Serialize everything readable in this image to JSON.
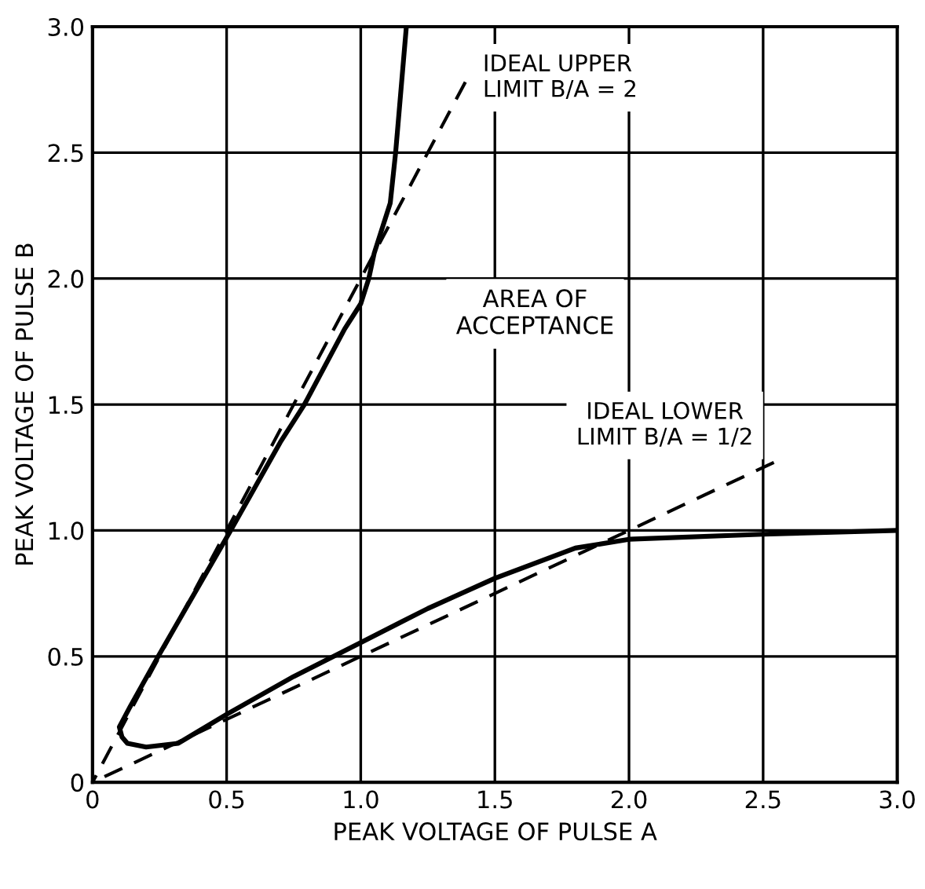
{
  "chart_data": {
    "type": "line",
    "xlabel": "PEAK VOLTAGE OF PULSE A",
    "ylabel": "PEAK VOLTAGE OF PULSE B",
    "xlim": [
      0,
      3
    ],
    "ylim": [
      0,
      3
    ],
    "xticks": [
      0,
      {
        "value": 0.5,
        "label": "0.5"
      },
      {
        "value": 1,
        "label": "1.0"
      },
      {
        "value": 1.5,
        "label": "1.5"
      },
      {
        "value": 2,
        "label": "2.0"
      },
      {
        "value": 2.5,
        "label": "2.5"
      },
      {
        "value": 3,
        "label": "3.0"
      }
    ],
    "yticks": [
      0,
      {
        "value": 0.5,
        "label": "0.5"
      },
      {
        "value": 1,
        "label": "1.0"
      },
      {
        "value": 1.5,
        "label": "1.5"
      },
      {
        "value": 2,
        "label": "2.0"
      },
      {
        "value": 2.5,
        "label": "2.5"
      },
      {
        "value": 3,
        "label": "3.0"
      }
    ],
    "grid": true,
    "legend": false,
    "series": [
      {
        "color": "#000000",
        "line_style": "solid",
        "x": [
          1.17,
          1.13,
          1.11,
          1.05,
          1.03,
          1.0,
          0.94,
          0.79,
          0.7,
          0.515,
          0.245,
          0.14,
          0.1,
          0.11,
          0.13,
          0.2,
          0.32,
          0.5,
          0.75,
          1.0,
          1.25,
          1.5,
          1.8,
          2.0,
          2.5,
          3.0
        ],
        "values": [
          3.0,
          2.5,
          2.3,
          2.1,
          2.0,
          1.9,
          1.8,
          1.5,
          1.35,
          1.0,
          0.5,
          0.3,
          0.22,
          0.18,
          0.155,
          0.14,
          0.155,
          0.27,
          0.42,
          0.555,
          0.69,
          0.81,
          0.93,
          0.965,
          0.985,
          1.0
        ]
      },
      {
        "color": "#000000",
        "line_style": "dashed",
        "x": [
          0,
          1.39
        ],
        "values": [
          0,
          2.78
        ]
      },
      {
        "color": "#000000",
        "line_style": "dashed",
        "x": [
          0,
          2.54
        ],
        "values": [
          0,
          1.27
        ]
      }
    ],
    "annotations": [
      {
        "text": "IDEAL UPPER\nLIMIT B/A = 2",
        "x": 1.39,
        "y": 2.78
      },
      "AREA OF\nACCEPTANCE",
      {
        "text": "IDEAL LOWER\nLIMIT B/A = 1/2",
        "x": 2.54,
        "y": 1.27
      }
    ]
  }
}
